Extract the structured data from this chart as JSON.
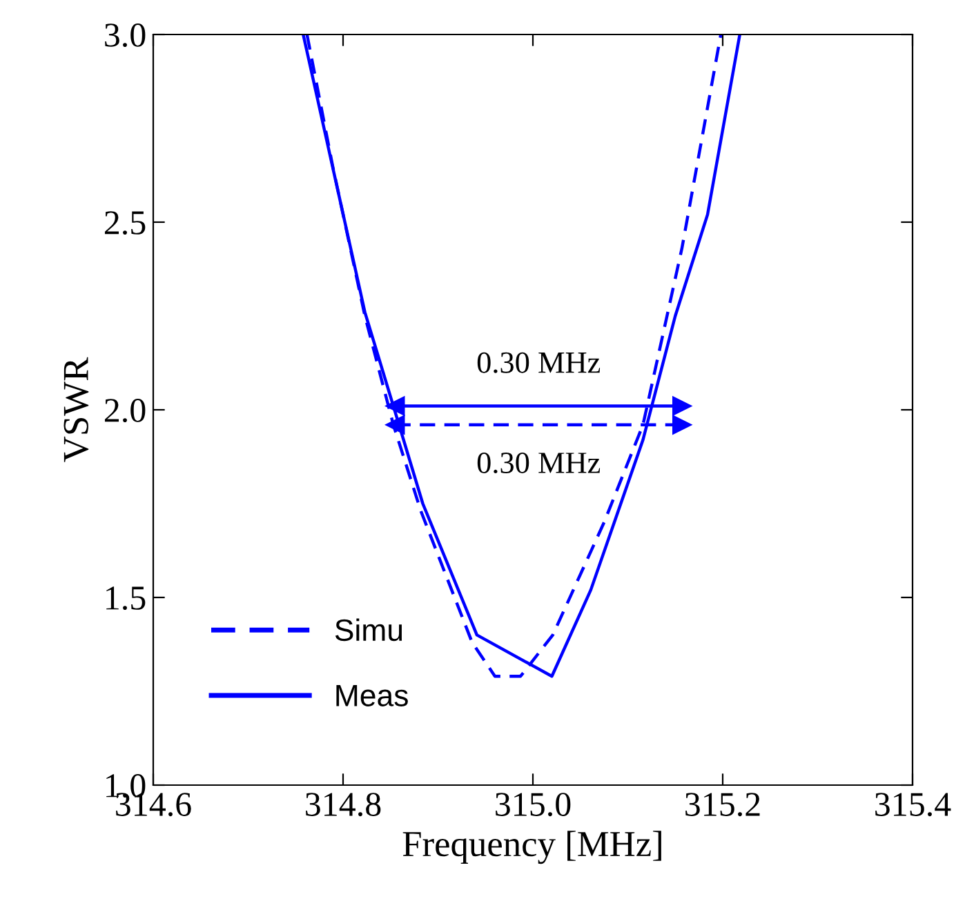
{
  "chart_data": {
    "type": "line",
    "xlabel": "Frequency [MHz]",
    "ylabel": "VSWR",
    "xlim": [
      314.6,
      315.4
    ],
    "xticks": [
      {
        "value": 314.6,
        "label": "314.6"
      },
      {
        "value": 314.8,
        "label": "314.8"
      },
      {
        "value": 315.0,
        "label": "315.0"
      },
      {
        "value": 315.2,
        "label": "315.2"
      },
      {
        "value": 315.4,
        "label": "315.4"
      }
    ],
    "ylim": [
      1.0,
      3.0
    ],
    "yticks": [
      {
        "value": 1.0,
        "label": "1.0"
      },
      {
        "value": 1.5,
        "label": "1.5"
      },
      {
        "value": 2.0,
        "label": "2.0"
      },
      {
        "value": 2.5,
        "label": "2.5"
      },
      {
        "value": 3.0,
        "label": "3.0"
      }
    ],
    "grid": false,
    "legend": "bottom left",
    "marker": "none",
    "series": [
      {
        "name": "Simu",
        "color": "#0000ff",
        "line_style": "dashed",
        "x": [
          314.762,
          314.789,
          314.823,
          314.853,
          314.882,
          314.936,
          314.96,
          314.987,
          315.021,
          315.075,
          315.116,
          315.157,
          315.198
        ],
        "values": [
          3.0,
          2.65,
          2.25,
          1.96,
          1.73,
          1.38,
          1.29,
          1.29,
          1.4,
          1.7,
          1.96,
          2.43,
          3.0
        ]
      },
      {
        "name": "Meas",
        "color": "#0000ff",
        "line_style": "solid",
        "x": [
          314.758,
          314.823,
          314.853,
          314.884,
          314.941,
          315.02,
          315.061,
          315.116,
          315.15,
          315.184,
          315.218
        ],
        "values": [
          3.0,
          2.26,
          2.01,
          1.75,
          1.4,
          1.29,
          1.52,
          1.92,
          2.25,
          2.52,
          3.0
        ]
      },
      {
        "color": "#0000ff",
        "line_style": "solid",
        "marker": "triangle",
        "x": [
          314.855,
          315.157
        ],
        "values": [
          2.01,
          2.01
        ]
      },
      {
        "color": "#0000ff",
        "line_style": "dashed",
        "marker": "triangle",
        "x": [
          314.855,
          315.157
        ],
        "values": [
          1.96,
          1.96
        ]
      }
    ],
    "annotations": [
      "0.30 MHz",
      "0.30 MHz"
    ]
  }
}
